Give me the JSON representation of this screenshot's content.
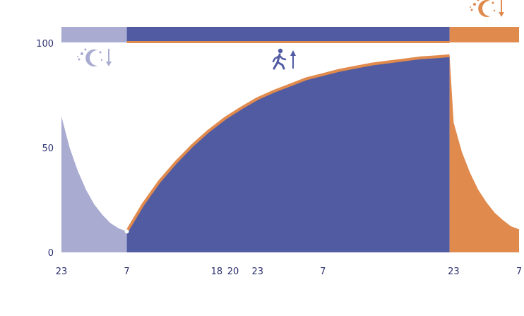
{
  "chart_data": {
    "type": "area",
    "title": "",
    "xlabel": "",
    "ylabel": "",
    "ylim": [
      0,
      100
    ],
    "y_ticks": [
      0,
      50,
      100
    ],
    "x_ticks": [
      "23",
      "7",
      "18",
      "20",
      "23",
      "7",
      "23",
      "7"
    ],
    "x_tick_hours": [
      0,
      8,
      19,
      21,
      24,
      32,
      48,
      56
    ],
    "x_hours_range": [
      0,
      56
    ],
    "grid": false,
    "legend": "none",
    "series": [
      {
        "phase": "sleep",
        "color": "#a9abd1",
        "icon": "moon-stars-down-icon",
        "points": [
          [
            0,
            65
          ],
          [
            1,
            50
          ],
          [
            2,
            39
          ],
          [
            3,
            30
          ],
          [
            4,
            23
          ],
          [
            5,
            18
          ],
          [
            6,
            14
          ],
          [
            7,
            11.5
          ],
          [
            8,
            10
          ]
        ]
      },
      {
        "phase": "awake",
        "color": "#515ba2",
        "outline": "#e08a4d",
        "icon": "walking-up-icon",
        "points": [
          [
            8,
            10
          ],
          [
            10,
            23
          ],
          [
            12,
            34
          ],
          [
            14,
            43
          ],
          [
            16,
            51
          ],
          [
            18,
            58
          ],
          [
            20,
            64
          ],
          [
            22,
            69
          ],
          [
            24,
            73.5
          ],
          [
            26,
            77
          ],
          [
            28,
            80
          ],
          [
            30,
            83
          ],
          [
            32,
            85
          ],
          [
            34,
            87
          ],
          [
            36,
            88.5
          ],
          [
            38,
            90
          ],
          [
            40,
            91
          ],
          [
            42,
            92
          ],
          [
            44,
            93
          ],
          [
            46,
            93.5
          ],
          [
            47.5,
            94
          ]
        ]
      },
      {
        "phase": "sleep",
        "color": "#e08a4d",
        "icon": "moon-stars-down-icon",
        "points": [
          [
            47.5,
            94
          ],
          [
            48,
            62
          ],
          [
            49,
            48
          ],
          [
            50,
            38
          ],
          [
            51,
            30
          ],
          [
            52,
            24
          ],
          [
            53,
            19
          ],
          [
            54,
            15.5
          ],
          [
            55,
            12.5
          ],
          [
            56,
            11
          ]
        ]
      }
    ],
    "top_band": [
      {
        "start": 0,
        "end": 8,
        "color": "#a9abd1"
      },
      {
        "start": 8,
        "end": 47.5,
        "color": "#515ba2"
      },
      {
        "start": 47.5,
        "end": 56,
        "color": "#e08a4d"
      }
    ]
  }
}
